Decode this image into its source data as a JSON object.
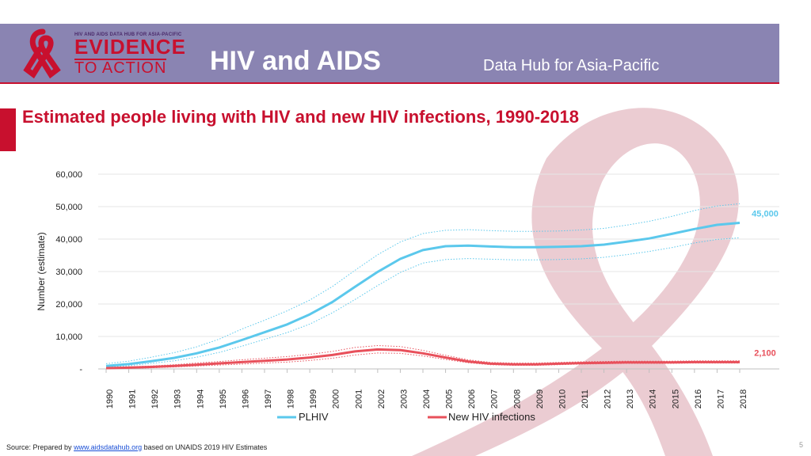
{
  "header": {
    "logo_top_text": "HIV AND AIDS DATA HUB FOR ASIA-PACIFIC",
    "logo_line1": "EVIDENCE",
    "logo_line2": "TO ACTION",
    "title": "HIV and AIDS",
    "subtitle": "Data Hub for Asia-Pacific"
  },
  "colors": {
    "header_bg": "#8a84b2",
    "accent_red": "#c8102e",
    "plhiv": "#5bc8ec",
    "new_infections": "#e8505b",
    "ribbon": "#e7c3ca"
  },
  "page_title": "Estimated people living with HIV and new HIV infections, 1990-2018",
  "chart_data": {
    "type": "line",
    "ylabel": "Number (estimate)",
    "xlabel": "",
    "ylim": [
      0,
      60000
    ],
    "yticks": [
      {
        "value": 0,
        "label": "-"
      },
      {
        "value": 10000,
        "label": "10,000"
      },
      {
        "value": 20000,
        "label": "20,000"
      },
      {
        "value": 30000,
        "label": "30,000"
      },
      {
        "value": 40000,
        "label": "40,000"
      },
      {
        "value": 50000,
        "label": "50,000"
      },
      {
        "value": 60000,
        "label": "60,000"
      }
    ],
    "x": [
      "1990",
      "1991",
      "1992",
      "1993",
      "1994",
      "1995",
      "1996",
      "1997",
      "1998",
      "1999",
      "2000",
      "2001",
      "2002",
      "2003",
      "2004",
      "2005",
      "2006",
      "2007",
      "2008",
      "2009",
      "2010",
      "2011",
      "2012",
      "2013",
      "2014",
      "2015",
      "2016",
      "2017",
      "2018"
    ],
    "grid": true,
    "legend_position": "bottom",
    "series": [
      {
        "name": "PLHIV",
        "color": "#5bc8ec",
        "values": [
          900,
          1500,
          2400,
          3400,
          4800,
          6600,
          8900,
          11300,
          13700,
          16800,
          20600,
          25300,
          29900,
          33900,
          36600,
          37800,
          38000,
          37700,
          37500,
          37500,
          37600,
          37800,
          38300,
          39200,
          40200,
          41600,
          43100,
          44400,
          45000
        ],
        "lower": [
          500,
          1000,
          1700,
          2500,
          3600,
          5100,
          7000,
          9100,
          11200,
          13800,
          17300,
          21400,
          25700,
          29700,
          32600,
          33700,
          34000,
          33800,
          33600,
          33600,
          33700,
          33900,
          34400,
          35200,
          36200,
          37400,
          38800,
          39900,
          40400
        ],
        "upper": [
          1600,
          2400,
          3600,
          5000,
          6800,
          9200,
          12300,
          15000,
          17900,
          21200,
          25400,
          30400,
          35200,
          39100,
          41700,
          42700,
          42900,
          42600,
          42400,
          42400,
          42500,
          42800,
          43300,
          44300,
          45500,
          47000,
          48800,
          50200,
          50900
        ],
        "end_label": "45,000"
      },
      {
        "name": "New HIV infections",
        "color": "#e8505b",
        "values": [
          250,
          400,
          600,
          900,
          1300,
          1700,
          2100,
          2500,
          2900,
          3500,
          4300,
          5400,
          6000,
          5800,
          4800,
          3500,
          2300,
          1600,
          1400,
          1400,
          1600,
          1800,
          1900,
          2000,
          2000,
          2000,
          2100,
          2100,
          2100
        ],
        "lower": [
          100,
          200,
          350,
          600,
          900,
          1200,
          1500,
          1800,
          2100,
          2600,
          3300,
          4300,
          4900,
          4800,
          4000,
          2900,
          1900,
          1300,
          1100,
          1100,
          1300,
          1500,
          1600,
          1700,
          1700,
          1700,
          1800,
          1800,
          1800
        ],
        "upper": [
          400,
          650,
          900,
          1300,
          1800,
          2300,
          2800,
          3300,
          3800,
          4500,
          5400,
          6600,
          7200,
          6900,
          5700,
          4200,
          2800,
          2000,
          1800,
          1800,
          2000,
          2200,
          2300,
          2400,
          2400,
          2400,
          2500,
          2500,
          2500
        ],
        "end_label": "2,100"
      }
    ]
  },
  "legend": {
    "plhiv": "PLHIV",
    "new_infections": "New HIV infections"
  },
  "footer": {
    "source_prefix": "Source: Prepared by ",
    "source_link": "www.aidsdatahub.org",
    "source_suffix": "  based on UNAIDS 2019 HIV Estimates",
    "page_number": "5"
  }
}
